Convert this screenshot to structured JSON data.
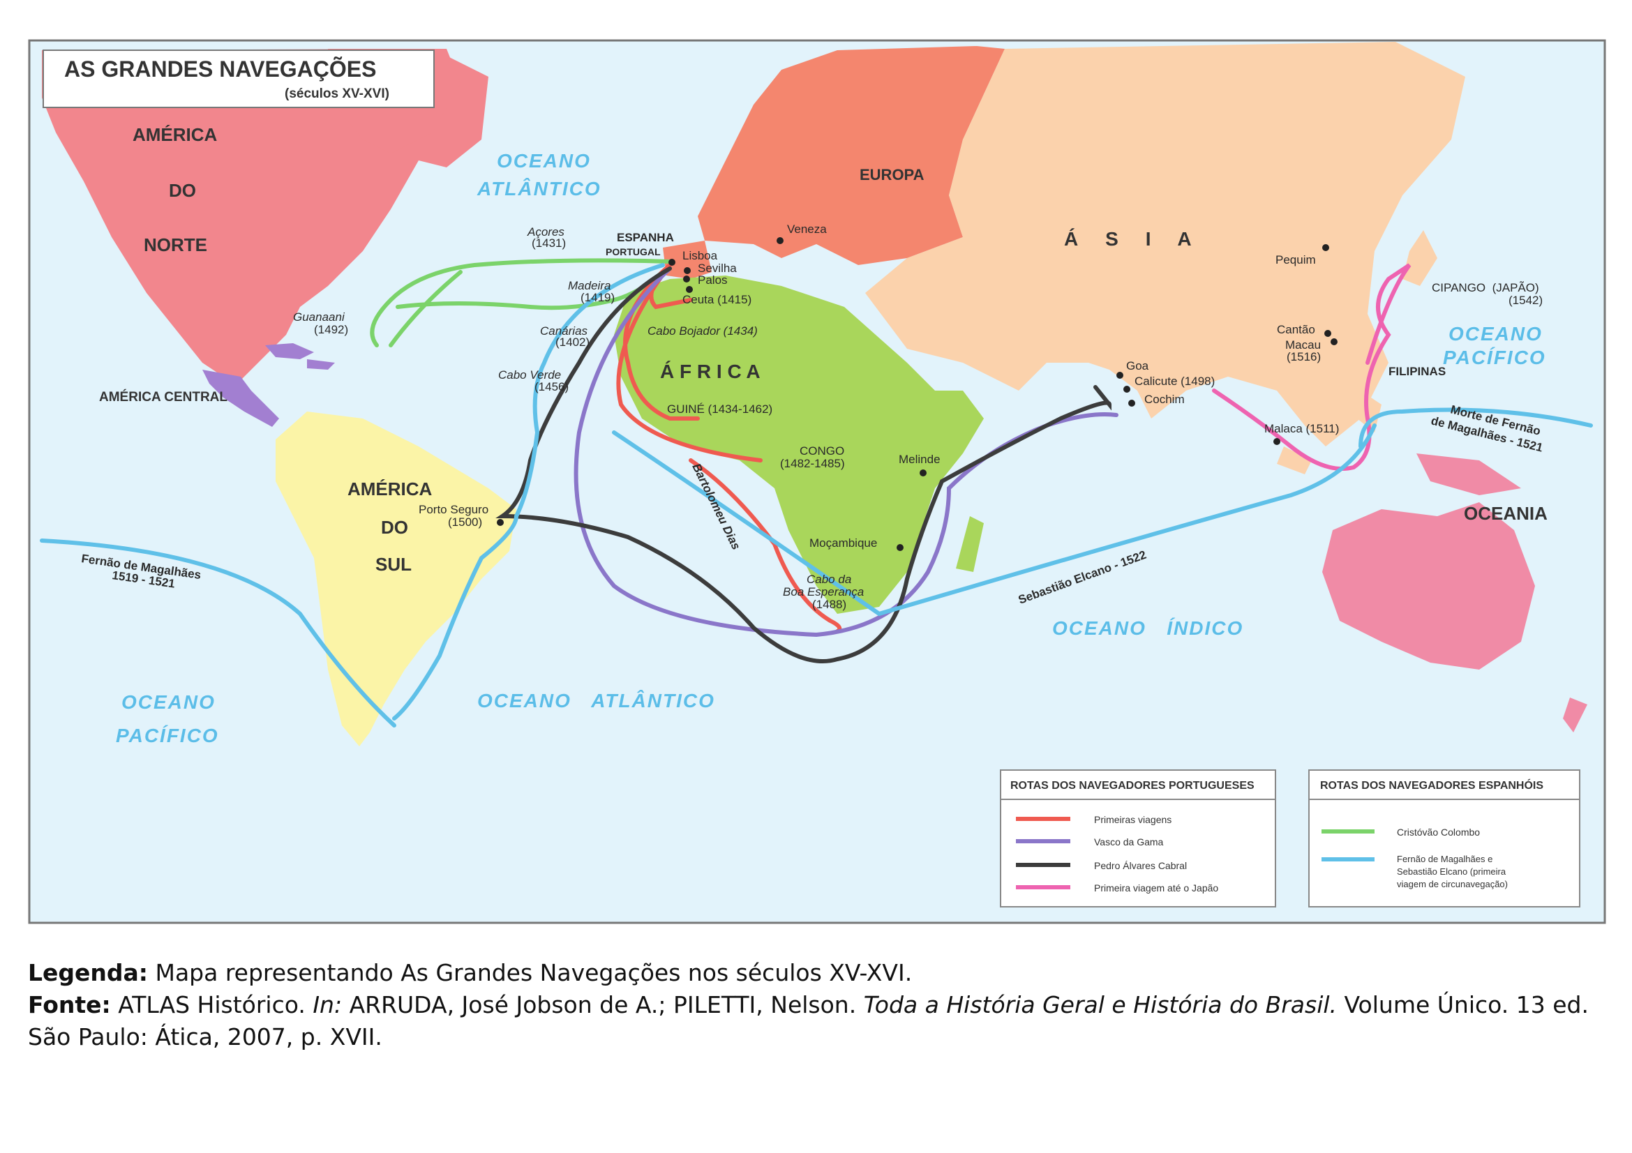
{
  "map": {
    "title": "AS GRANDES NAVEGAÇÕES",
    "subtitle": "(séculos XV-XVI)",
    "continents": [
      {
        "id": "america-norte-1",
        "text": "AMÉRICA"
      },
      {
        "id": "america-norte-2",
        "text": "DO"
      },
      {
        "id": "america-norte-3",
        "text": "NORTE"
      },
      {
        "id": "america-central",
        "text": "AMÉRICA CENTRAL"
      },
      {
        "id": "america-sul-1",
        "text": "AMÉRICA"
      },
      {
        "id": "america-sul-2",
        "text": "DO"
      },
      {
        "id": "america-sul-3",
        "text": "SUL"
      },
      {
        "id": "europa",
        "text": "EUROPA"
      },
      {
        "id": "africa",
        "text": "Á F R I C A"
      },
      {
        "id": "asia",
        "text": "Á     S     I     A"
      },
      {
        "id": "oceania",
        "text": "OCEANIA"
      }
    ],
    "oceans": [
      {
        "id": "atl-n-1",
        "text": "OCEANO"
      },
      {
        "id": "atl-n-2",
        "text": "ATLÂNTICO"
      },
      {
        "id": "atl-s",
        "text": "OCEANO   ATLÂNTICO"
      },
      {
        "id": "pac-w-1",
        "text": "OCEANO"
      },
      {
        "id": "pac-w-2",
        "text": "PACÍFICO"
      },
      {
        "id": "pac-e-1",
        "text": "OCEANO"
      },
      {
        "id": "pac-e-2",
        "text": "PACÍFICO"
      },
      {
        "id": "indico",
        "text": "OCEANO   ÍNDICO"
      }
    ],
    "places": {
      "acores": "Açores",
      "acores_year": "(1431)",
      "espanha": "ESPANHA",
      "portugal": "PORTUGAL",
      "lisboa": "Lisboa",
      "sevilha": "Sevilha",
      "palos": "Palos",
      "madeira": "Madeira",
      "madeira_year": "(1419)",
      "ceuta": "Ceuta (1415)",
      "canarias": "Canárias",
      "canarias_year": "(1402)",
      "cabo_bojador": "Cabo Bojador (1434)",
      "cabo_verde": "Cabo Verde",
      "cabo_verde_year": "(1456)",
      "guine": "GUINÉ (1434-1462)",
      "congo": "CONGO",
      "congo_year": "(1482-1485)",
      "melinde": "Melinde",
      "mocambique": "Moçambique",
      "cabo_boa_1": "Cabo da",
      "cabo_boa_2": "Boa Esperança",
      "cabo_boa_year": "(1488)",
      "bartolomeu": "Bartolomeu Dias",
      "guanaani": "Guanaani",
      "guanaani_year": "(1492)",
      "porto_seguro": "Porto Seguro",
      "porto_seguro_year": "(1500)",
      "veneza": "Veneza",
      "pequim": "Pequim",
      "cipango": "CIPANGO  (JAPÃO)",
      "cipango_year": "(1542)",
      "cantao": "Cantão",
      "macau": "Macau",
      "macau_year": "(1516)",
      "filipinas": "FILIPINAS",
      "goa": "Goa",
      "calicute": "Calicute (1498)",
      "cochim": "Cochim",
      "malaca": "Malaca (1511)",
      "morte_1": "Morte de Fernão",
      "morte_2": "de Magalhães - 1521",
      "fernao_1": "Fernão de Magalhães",
      "fernao_2": "1519 - 1521",
      "elcano": "Sebastião Elcano - 1522"
    },
    "legend_pt": {
      "title": "ROTAS DOS NAVEGADORES PORTUGUESES",
      "items": [
        {
          "label": "Primeiras viagens",
          "color": "#ef5a50"
        },
        {
          "label": "Vasco da Gama",
          "color": "#8a76c9"
        },
        {
          "label": "Pedro Álvares Cabral",
          "color": "#3c3c3c"
        },
        {
          "label": "Primeira viagem até o Japão",
          "color": "#ee63b0"
        }
      ]
    },
    "legend_es": {
      "title": "ROTAS DOS NAVEGADORES ESPANHÓIS",
      "items": [
        {
          "label": "Cristóvão Colombo",
          "color": "#7bd36a"
        },
        {
          "label_1": "Fernão de Magalhães e",
          "label_2": "Sebastião Elcano (primeira",
          "label_3": "viagem de circunavegação)",
          "color": "#5fc0e8"
        }
      ]
    },
    "colors": {
      "ocean": "#e2f3fb",
      "north_america": "#f2868d",
      "central_america": "#a27fd1",
      "south_america": "#fbf4a7",
      "europe": "#f4866e",
      "asia": "#fbd2ac",
      "africa": "#a9d65b",
      "oceania": "#f08ba6"
    }
  },
  "caption": {
    "legenda_key": "Legenda:",
    "legenda_text": " Mapa representando As Grandes Navegações nos séculos XV-XVI.",
    "fonte_key": "Fonte:",
    "fonte_a": " ATLAS Histórico. ",
    "fonte_in": "In:",
    "fonte_b": " ARRUDA, José Jobson de A.; PILETTI, Nelson. ",
    "fonte_book": "Toda a História Geral e História do Brasil.",
    "fonte_c": " Volume Único. 13 ed.",
    "fonte_d": "São Paulo: Ática, 2007, p. XVII."
  }
}
